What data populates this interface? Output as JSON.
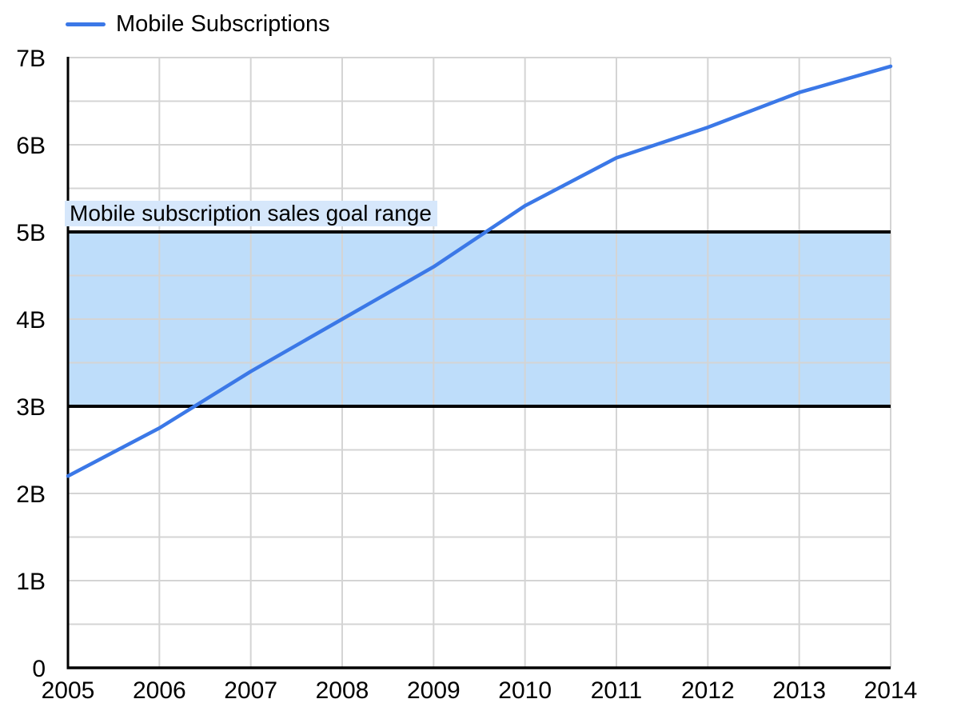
{
  "legend": {
    "label": "Mobile Subscriptions"
  },
  "colors": {
    "background": "#FFFFFF",
    "gridline": "#D4D4D4",
    "axis": "#000000",
    "text": "#000000",
    "series_blue": "#3B78E7",
    "band_fill": "#BEDDFA",
    "band_label_background": "#D6E7FB",
    "band_border": "#000000"
  },
  "chart_data": {
    "type": "line",
    "title": "",
    "xlabel": "",
    "ylabel": "",
    "x": [
      2005,
      2006,
      2007,
      2008,
      2009,
      2010,
      2011,
      2012,
      2013,
      2014
    ],
    "x_tick_labels": [
      "2005",
      "2006",
      "2007",
      "2008",
      "2009",
      "2010",
      "2011",
      "2012",
      "2013",
      "2014"
    ],
    "series": [
      {
        "name": "Mobile Subscriptions",
        "color": "#3B78E7",
        "values": [
          2.2,
          2.75,
          3.4,
          4.0,
          4.6,
          5.3,
          5.85,
          6.2,
          6.6,
          6.9
        ]
      }
    ],
    "ylim": [
      0,
      7
    ],
    "y_tick_labels": [
      "0",
      "1B",
      "2B",
      "3B",
      "4B",
      "5B",
      "6B",
      "7B"
    ],
    "y_minor_grid_step": 0.5,
    "grid": true,
    "legend_position": "top-left",
    "annotations": [
      {
        "type": "horizontal_band",
        "y_from": 3,
        "y_to": 5,
        "label": "Mobile subscription sales goal range",
        "fill_color": "#BEDDFA",
        "border_color": "#000000",
        "label_background": "#D6E7FB"
      }
    ]
  }
}
